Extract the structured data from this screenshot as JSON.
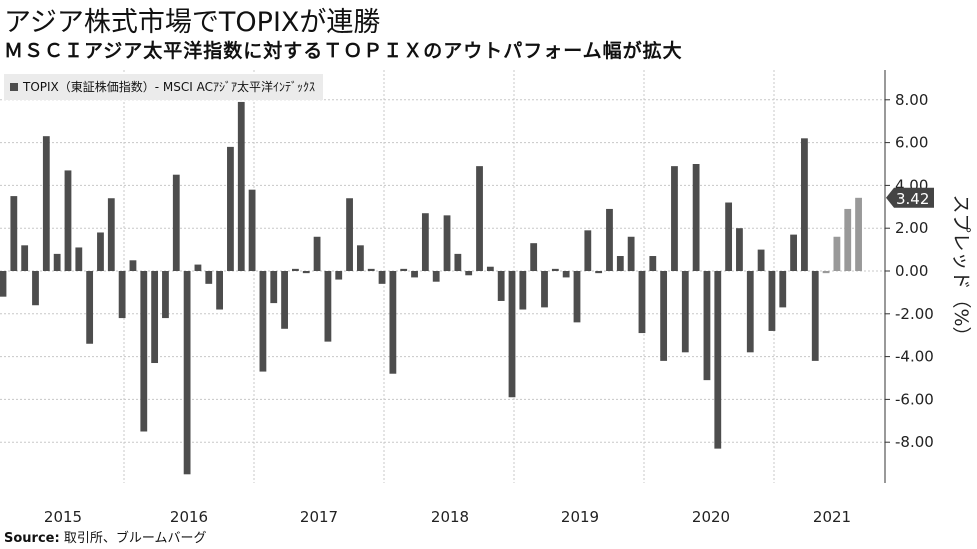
{
  "title": "アジア株式市場でTOPIXが連勝",
  "subtitle": "ＭＳＣＩアジア太平洋指数に対するＴＯＰＩＸのアウトパフォーム幅が拡大",
  "legend_label": "TOPIX（東証株価指数）- MSCI ACｱｼﾞｱ太平洋ｲﾝﾃﾞｯｸｽ",
  "source_label": "Source:",
  "source_text": "取引所、ブルームバーグ",
  "colors": {
    "bar": "#4d4d4d",
    "bar_recent": "#999999",
    "grid": "#c8c8c8",
    "marker": "#444444"
  },
  "chart_data": {
    "type": "bar",
    "title": "アジア株式市場でTOPIXが連勝",
    "ylabel": "スプレッド（%）",
    "ylim": [
      -9.5,
      9.5
    ],
    "y_ticks": [
      "8.00",
      "6.00",
      "4.00",
      "2.00",
      "0.00",
      "-2.00",
      "-4.00",
      "-6.00",
      "-8.00"
    ],
    "y_tick_values": [
      8,
      6,
      4,
      2,
      0,
      -2,
      -4,
      -6,
      -8
    ],
    "x_tick_labels": [
      "2015",
      "2016",
      "2017",
      "2018",
      "2019",
      "2020",
      "2021"
    ],
    "last_value_label": "3.42",
    "grid": true,
    "y_axis_side": "right",
    "recent_highlight_count": 4,
    "values": [
      -1.2,
      3.5,
      1.2,
      -1.6,
      6.3,
      0.8,
      4.7,
      1.1,
      -3.4,
      1.8,
      3.4,
      -2.2,
      0.5,
      -7.5,
      -4.3,
      -2.2,
      4.5,
      -9.5,
      0.3,
      -0.6,
      -1.8,
      5.8,
      7.9,
      3.8,
      -4.7,
      -1.5,
      -2.7,
      0.1,
      -0.1,
      1.6,
      -3.3,
      -0.4,
      3.4,
      1.2,
      0.1,
      -0.6,
      -4.8,
      0.1,
      -0.3,
      2.7,
      -0.5,
      2.6,
      0.8,
      -0.2,
      4.9,
      0.2,
      -1.4,
      -5.9,
      -1.8,
      1.3,
      -1.7,
      0.1,
      -0.3,
      -2.4,
      1.9,
      -0.1,
      2.9,
      0.7,
      1.6,
      -2.9,
      0.7,
      -4.2,
      4.9,
      -3.8,
      5.0,
      -5.1,
      -8.3,
      3.2,
      2.0,
      -3.8,
      1.0,
      -2.8,
      -1.7,
      1.7,
      6.2,
      -4.2,
      -0.1,
      1.6,
      2.9,
      3.42
    ]
  }
}
